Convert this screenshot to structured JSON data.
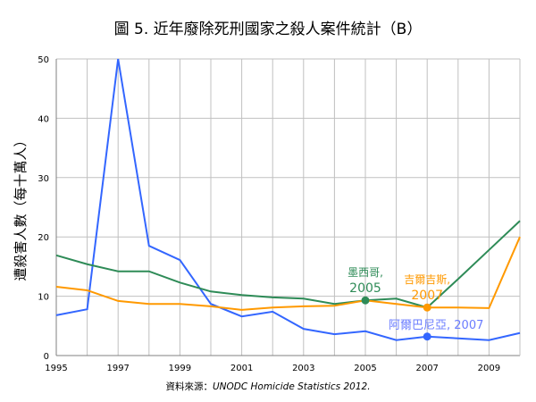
{
  "chart_data": {
    "type": "line",
    "title": "圖 5. 近年廢除死刑國家之殺人案件統計（B）",
    "xlabel": "",
    "ylabel": "遭殺害人數（每十萬人）",
    "source_label": "資料來源：",
    "source_text": "UNODC Homicide Statistics 2012.",
    "x": [
      1995,
      1996,
      1997,
      1998,
      1999,
      2000,
      2001,
      2002,
      2003,
      2004,
      2005,
      2006,
      2007,
      2008,
      2009,
      2010
    ],
    "xlim": [
      1995,
      2010
    ],
    "ylim": [
      0,
      50
    ],
    "x_ticks": [
      "1995",
      "1997",
      "1999",
      "2001",
      "2003",
      "2005",
      "2007",
      "2009"
    ],
    "y_ticks": [
      "0",
      "10",
      "20",
      "30",
      "40",
      "50"
    ],
    "grid": true,
    "series": [
      {
        "name": "阿爾巴尼亞",
        "color": "#3366ff",
        "values": [
          6.8,
          7.8,
          50,
          18.5,
          16.1,
          8.7,
          6.6,
          7.4,
          4.5,
          3.6,
          4.1,
          2.6,
          3.2,
          2.9,
          2.6,
          3.8
        ]
      },
      {
        "name": "墨西哥",
        "color": "#2e8b57",
        "values": [
          16.9,
          15.4,
          14.2,
          14.2,
          12.3,
          10.8,
          10.2,
          9.8,
          9.6,
          8.7,
          9.3,
          9.6,
          8.1,
          12.9,
          17.8,
          22.7
        ]
      },
      {
        "name": "吉爾吉斯",
        "color": "#ff9900",
        "values": [
          11.6,
          11.0,
          9.2,
          8.7,
          8.7,
          8.3,
          7.7,
          8.1,
          8.3,
          8.4,
          9.3,
          8.7,
          8.1,
          8.1,
          8.0,
          20.0
        ]
      }
    ],
    "annotations": [
      {
        "series": 1,
        "x": 2005,
        "y": 9.3,
        "line1": "墨西哥,",
        "line2": "2005"
      },
      {
        "series": 2,
        "x": 2007,
        "y": 8.1,
        "line1": "吉爾吉斯,",
        "line2": "2007"
      },
      {
        "series": 0,
        "x": 2007,
        "y": 3.2,
        "line1": "阿爾巴尼亞, 2007",
        "line2": ""
      }
    ]
  }
}
